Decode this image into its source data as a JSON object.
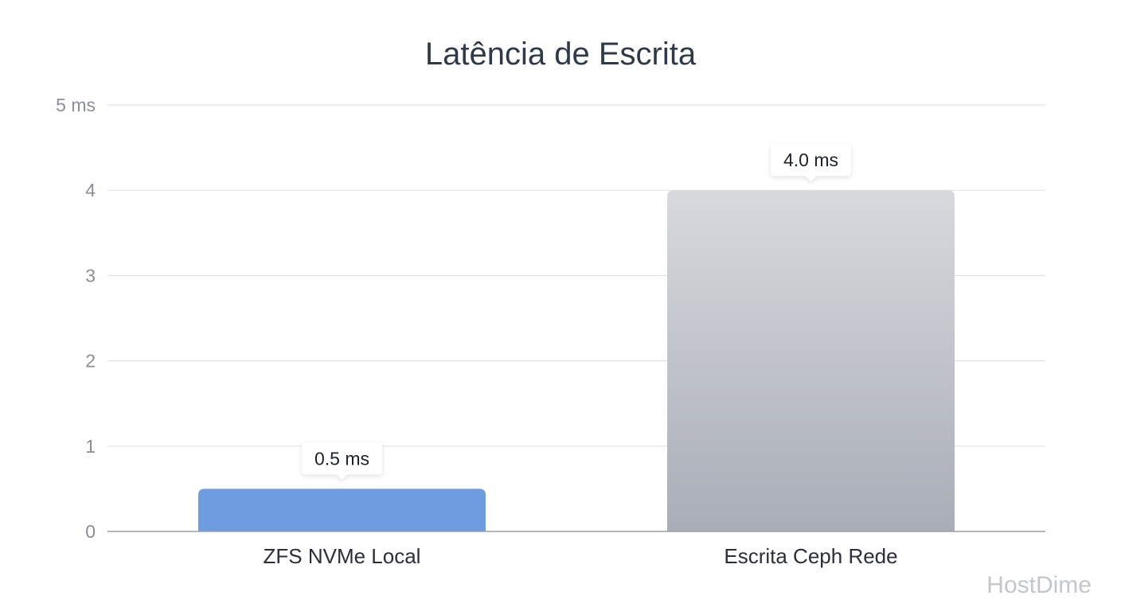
{
  "chart_data": {
    "type": "bar",
    "title": "Latência de Escrita",
    "categories": [
      "ZFS NVMe Local",
      "Escrita Ceph Rede"
    ],
    "values": [
      0.5,
      4.0
    ],
    "data_labels": [
      "0.5 ms",
      "4.0 ms"
    ],
    "ylim": [
      0,
      5
    ],
    "y_ticks": [
      {
        "value": 0,
        "label": "0"
      },
      {
        "value": 1,
        "label": "1"
      },
      {
        "value": 2,
        "label": "2"
      },
      {
        "value": 3,
        "label": "3"
      },
      {
        "value": 4,
        "label": "4"
      },
      {
        "value": 5,
        "label": "5 ms"
      }
    ],
    "grid": true,
    "legend": "none",
    "colors": {
      "bar_0_top": "#6e9ce0",
      "bar_0_bottom": "#6e9ce0",
      "bar_1_top": "#d7d9dd",
      "bar_1_bottom": "#a9adb7",
      "gridline": "#e2e4e8",
      "axis": "#9aa0a8"
    }
  },
  "watermark": "HostDime"
}
